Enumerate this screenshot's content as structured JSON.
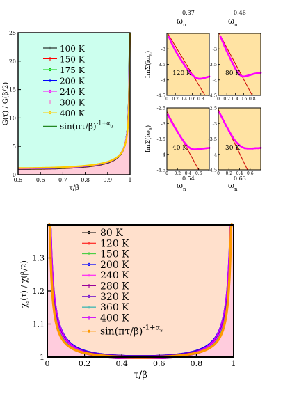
{
  "chart_data": [
    {
      "id": "g_tau",
      "type": "line",
      "xlabel": "τ/β",
      "ylabel": "G(τ) / G(β/2)",
      "xlim": [
        0.5,
        1.0
      ],
      "ylim": [
        0,
        25
      ],
      "xticks": [
        "0.5",
        "0.6",
        "0.7",
        "0.8",
        "0.9",
        "1"
      ],
      "yticks": [
        "0",
        "5",
        "10",
        "15",
        "20",
        "25"
      ],
      "background": "#ccffee",
      "fill_color": "#ffccd9",
      "legend_position": "top-right",
      "legend_fit": {
        "label": "sin(πτ/β)",
        "exponent": "-1+α",
        "subscript": "g"
      },
      "series": [
        {
          "name": "100 K",
          "color": "#000000",
          "alpha": 0.37
        },
        {
          "name": "150 K",
          "color": "#ff0000",
          "alpha": 0.38
        },
        {
          "name": "175 K",
          "color": "#00cc00",
          "alpha": 0.39
        },
        {
          "name": "200 K",
          "color": "#0000ff",
          "alpha": 0.4
        },
        {
          "name": "240 K",
          "color": "#ff00ff",
          "alpha": 0.41
        },
        {
          "name": "300 K",
          "color": "#ff66cc",
          "alpha": 0.42
        },
        {
          "name": "400 K",
          "color": "#ffcc00",
          "alpha": 0.44
        }
      ]
    },
    {
      "id": "sigma_panels",
      "type": "line",
      "background": "#ffe3a3",
      "curve_color": "#ff00ff",
      "fit_color": "#cc0000",
      "ylabel": "ImΣ(iω",
      "ylabel_sub": "n",
      "ylabel_end": ")",
      "xlabel_base": "ω",
      "xlabel_sub": "n",
      "xticks": [
        "0",
        "0.2",
        "0.4",
        "0.6",
        "0.8"
      ],
      "panels": [
        {
          "label": "120 K",
          "exponent": "0.37",
          "exp_pos": "top",
          "ylim": [
            -4.5,
            -2.5
          ],
          "yticks": [
            "-3",
            "-3.5",
            "-4",
            "-4.5"
          ],
          "xlim": [
            0,
            1.0
          ],
          "curve": [
            [
              0.05,
              -2.62
            ],
            [
              0.1,
              -2.78
            ],
            [
              0.15,
              -2.92
            ],
            [
              0.2,
              -3.05
            ],
            [
              0.25,
              -3.17
            ],
            [
              0.3,
              -3.28
            ],
            [
              0.35,
              -3.39
            ],
            [
              0.4,
              -3.49
            ],
            [
              0.45,
              -3.59
            ],
            [
              0.5,
              -3.68
            ],
            [
              0.55,
              -3.77
            ],
            [
              0.6,
              -3.84
            ],
            [
              0.65,
              -3.9
            ],
            [
              0.7,
              -3.94
            ],
            [
              0.75,
              -3.96
            ],
            [
              0.8,
              -3.96
            ],
            [
              0.85,
              -3.95
            ],
            [
              0.9,
              -3.93
            ],
            [
              0.95,
              -3.91
            ],
            [
              1.0,
              -3.89
            ]
          ],
          "fit": [
            [
              0.02,
              -2.5
            ],
            [
              0.9,
              -4.5
            ]
          ]
        },
        {
          "label": "80 K",
          "exponent": "0.46",
          "exp_pos": "top",
          "ylim": [
            -4.5,
            -2.5
          ],
          "yticks": [
            "-3",
            "-3.5",
            "-4",
            "-4.5"
          ],
          "xlim": [
            0,
            1.0
          ],
          "curve": [
            [
              0.05,
              -2.6
            ],
            [
              0.1,
              -2.76
            ],
            [
              0.15,
              -2.92
            ],
            [
              0.2,
              -3.07
            ],
            [
              0.25,
              -3.22
            ],
            [
              0.3,
              -3.36
            ],
            [
              0.35,
              -3.5
            ],
            [
              0.4,
              -3.63
            ],
            [
              0.45,
              -3.74
            ],
            [
              0.5,
              -3.83
            ],
            [
              0.55,
              -3.88
            ],
            [
              0.6,
              -3.89
            ],
            [
              0.65,
              -3.88
            ],
            [
              0.7,
              -3.86
            ],
            [
              0.75,
              -3.84
            ],
            [
              0.8,
              -3.82
            ],
            [
              0.85,
              -3.8
            ],
            [
              0.9,
              -3.79
            ],
            [
              0.95,
              -3.78
            ],
            [
              1.0,
              -3.77
            ]
          ],
          "fit": [
            [
              0.02,
              -2.5
            ],
            [
              0.8,
              -4.5
            ]
          ]
        },
        {
          "label": "40 K",
          "exponent": "0.54",
          "exp_pos": "bottom",
          "ylim": [
            -4.5,
            -2.5
          ],
          "yticks": [
            "-2.5",
            "-3",
            "-3.5",
            "-4",
            "-4.5"
          ],
          "xlim": [
            0,
            0.8
          ],
          "curve": [
            [
              0.02,
              -2.72
            ],
            [
              0.05,
              -2.82
            ],
            [
              0.1,
              -2.98
            ],
            [
              0.15,
              -3.13
            ],
            [
              0.2,
              -3.27
            ],
            [
              0.25,
              -3.41
            ],
            [
              0.3,
              -3.54
            ],
            [
              0.35,
              -3.66
            ],
            [
              0.4,
              -3.75
            ],
            [
              0.45,
              -3.81
            ],
            [
              0.5,
              -3.84
            ],
            [
              0.55,
              -3.84
            ],
            [
              0.6,
              -3.83
            ],
            [
              0.65,
              -3.82
            ],
            [
              0.7,
              -3.81
            ],
            [
              0.75,
              -3.8
            ],
            [
              0.8,
              -3.79
            ]
          ],
          "fit": [
            [
              0.0,
              -2.62
            ],
            [
              0.6,
              -4.5
            ]
          ]
        },
        {
          "label": "30 K",
          "exponent": "0.63",
          "exp_pos": "bottom",
          "ylim": [
            -4.5,
            -2.5
          ],
          "yticks": [
            "-2.5",
            "-3",
            "-3.5",
            "-4",
            "-4.5"
          ],
          "xlim": [
            0,
            0.8
          ],
          "curve": [
            [
              0.02,
              -2.65
            ],
            [
              0.05,
              -2.75
            ],
            [
              0.1,
              -2.92
            ],
            [
              0.15,
              -3.08
            ],
            [
              0.2,
              -3.24
            ],
            [
              0.25,
              -3.39
            ],
            [
              0.3,
              -3.52
            ],
            [
              0.35,
              -3.63
            ],
            [
              0.4,
              -3.71
            ],
            [
              0.45,
              -3.77
            ],
            [
              0.5,
              -3.8
            ],
            [
              0.55,
              -3.81
            ],
            [
              0.6,
              -3.81
            ],
            [
              0.65,
              -3.81
            ],
            [
              0.7,
              -3.8
            ],
            [
              0.75,
              -3.8
            ],
            [
              0.8,
              -3.79
            ]
          ],
          "fit": [
            [
              0.0,
              -2.55
            ],
            [
              0.55,
              -4.5
            ]
          ]
        }
      ]
    },
    {
      "id": "chi_tau",
      "type": "line",
      "xlabel": "τ/β",
      "ylabel": "χ",
      "ylabel_sub": "s",
      "ylabel_end": "(τ) / χ(β/2)",
      "xlim": [
        0,
        1
      ],
      "ylim": [
        1.0,
        1.4
      ],
      "xticks": [
        "0",
        "0.2",
        "0.4",
        "0.6",
        "0.8",
        "1"
      ],
      "yticks": [
        "1",
        "1.1",
        "1.2",
        "1.3"
      ],
      "background": "#ffe0cc",
      "fill_color": "#ffccdd",
      "legend_position": "top-center",
      "legend_fit": {
        "label": "sin(πτ/β)",
        "exponent": "-1+α",
        "subscript": "s"
      },
      "series": [
        {
          "name": "80 K",
          "color": "#000000"
        },
        {
          "name": "120 K",
          "color": "#ff0000"
        },
        {
          "name": "150 K",
          "color": "#33cc33"
        },
        {
          "name": "200 K",
          "color": "#0000ff"
        },
        {
          "name": "240 K",
          "color": "#ff00ff"
        },
        {
          "name": "280 K",
          "color": "#990099"
        },
        {
          "name": "320 K",
          "color": "#6600cc"
        },
        {
          "name": "360 K",
          "color": "#00aaaa"
        },
        {
          "name": "400 K",
          "color": "#cc00ff"
        }
      ],
      "fit_color": "#ff9900"
    }
  ]
}
